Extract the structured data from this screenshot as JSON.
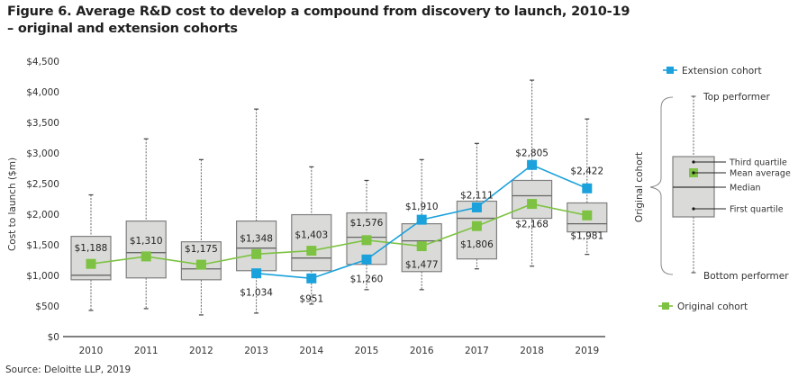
{
  "chart_data": {
    "type": "boxplot-with-lines",
    "title": "Figure 6. Average R&D cost to develop a compound from discovery to launch, 2010-19",
    "title_line2": "– original and extension cohorts",
    "xlabel": "",
    "ylabel": "Cost to launch ($m)",
    "ylim": [
      0,
      4500
    ],
    "yticks": [
      0,
      500,
      1000,
      1500,
      2000,
      2500,
      3000,
      3500,
      4000,
      4500
    ],
    "ytick_labels": [
      "$0",
      "$500",
      "$1,000",
      "$1,500",
      "$2,000",
      "$2,500",
      "$3,000",
      "$3,500",
      "$4,000",
      "$4,500"
    ],
    "categories": [
      "2010",
      "2011",
      "2012",
      "2013",
      "2014",
      "2015",
      "2016",
      "2017",
      "2018",
      "2019"
    ],
    "grid": false,
    "boxes": [
      {
        "year": "2010",
        "top": 2316,
        "q3": 1638,
        "median": 1003,
        "q1": 929,
        "bottom": 428
      },
      {
        "year": "2011",
        "top": 3231,
        "q3": 1888,
        "median": 1372,
        "q1": 959,
        "bottom": 457
      },
      {
        "year": "2012",
        "top": 2892,
        "q3": 1549,
        "median": 1107,
        "q1": 929,
        "bottom": 354
      },
      {
        "year": "2013",
        "top": 3718,
        "q3": 1888,
        "median": 1446,
        "q1": 1077,
        "bottom": 384
      },
      {
        "year": "2014",
        "top": 2774,
        "q3": 1992,
        "median": 1284,
        "q1": 1077,
        "bottom": 531
      },
      {
        "year": "2015",
        "top": 2552,
        "q3": 2021,
        "median": 1623,
        "q1": 1180,
        "bottom": 767
      },
      {
        "year": "2016",
        "top": 2892,
        "q3": 1844,
        "median": 1564,
        "q1": 1062,
        "bottom": 767
      },
      {
        "year": "2017",
        "top": 3157,
        "q3": 2213,
        "median": 1933,
        "q1": 1269,
        "bottom": 1107
      },
      {
        "year": "2018",
        "top": 4190,
        "q3": 2552,
        "median": 2302,
        "q1": 1933,
        "bottom": 1151
      },
      {
        "year": "2019",
        "top": 3556,
        "q3": 2184,
        "median": 1844,
        "q1": 1711,
        "bottom": 1343
      }
    ],
    "series": [
      {
        "name": "Original cohort",
        "color": "#7DC242",
        "x": [
          "2010",
          "2011",
          "2012",
          "2013",
          "2014",
          "2015",
          "2016",
          "2017",
          "2018",
          "2019"
        ],
        "values": [
          1188,
          1310,
          1175,
          1348,
          1403,
          1576,
          1477,
          1806,
          2168,
          1981
        ],
        "labels": [
          "$1,188",
          "$1,310",
          "$1,175",
          "$1,348",
          "$1,403",
          "$1,576",
          "$1,477",
          "$1,806",
          "$2,168",
          "$1,981"
        ]
      },
      {
        "name": "Extension cohort",
        "color": "#1BA1DB",
        "x": [
          "2013",
          "2014",
          "2015",
          "2016",
          "2017",
          "2018",
          "2019"
        ],
        "values": [
          1034,
          951,
          1260,
          1910,
          2111,
          2805,
          2422
        ],
        "labels": [
          "$1,034",
          "$951",
          "$1,260",
          "$1,910",
          "$2,111",
          "$2,805",
          "$2,422"
        ]
      }
    ],
    "legend": {
      "placement": "right",
      "extension_label": "Extension cohort",
      "original_label": "Original cohort",
      "bracket_label": "Original cohort",
      "key_labels": {
        "top": "Top performer",
        "q3": "Third quartile",
        "mean": "Mean average",
        "median": "Median",
        "q1": "First quartile",
        "bottom": "Bottom performer"
      }
    }
  },
  "colors": {
    "original": "#7DC242",
    "extension": "#1BA1DB",
    "box_fill": "#DADBD8",
    "box_stroke": "#7f7f7f",
    "axis": "#333333"
  },
  "source": "Source: Deloitte LLP, 2019"
}
